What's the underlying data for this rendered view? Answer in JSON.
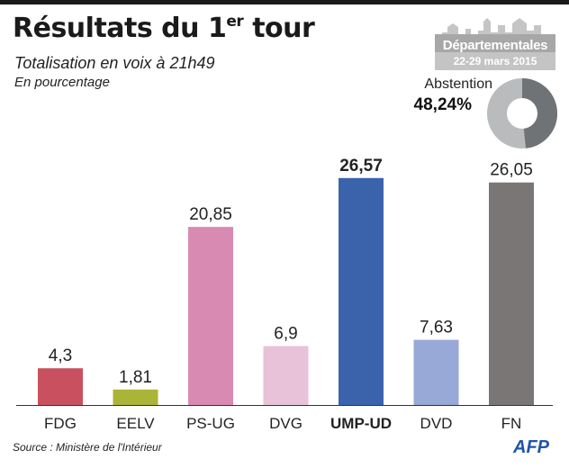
{
  "header": {
    "title_main": "Résultats du 1",
    "title_sup": "er",
    "title_end": " tour",
    "subtitle": "Totalisation en voix à 21h49",
    "unit_note": "En pourcentage"
  },
  "badge": {
    "label": "Départementales",
    "dates": "22-29 mars 2015"
  },
  "abstention": {
    "label": "Abstention",
    "value_text": "48,24%",
    "percent": 48.24
  },
  "chart_data": {
    "type": "bar",
    "title": "Résultats du 1er tour",
    "subtitle": "Totalisation en voix à 21h49",
    "ylabel": "En pourcentage",
    "xlabel": "",
    "ylim": [
      0,
      29.5
    ],
    "categories": [
      "FDG",
      "EELV",
      "PS-UG",
      "DVG",
      "UMP-UD",
      "DVD",
      "FN"
    ],
    "values": [
      4.3,
      1.81,
      20.85,
      6.9,
      26.57,
      7.63,
      26.05
    ],
    "value_labels": [
      "4,3",
      "1,81",
      "20,85",
      "6,9",
      "26,57",
      "7,63",
      "26,05"
    ],
    "highlight": "UMP-UD",
    "colors": [
      "#c9505e",
      "#a9b536",
      "#d98ab3",
      "#e7c2d8",
      "#3a63ac",
      "#98a8d7",
      "#7a7676"
    ],
    "grid": false
  },
  "footer": {
    "source": "Source : Ministère de l'Intérieur",
    "logo_text": "AFP"
  }
}
